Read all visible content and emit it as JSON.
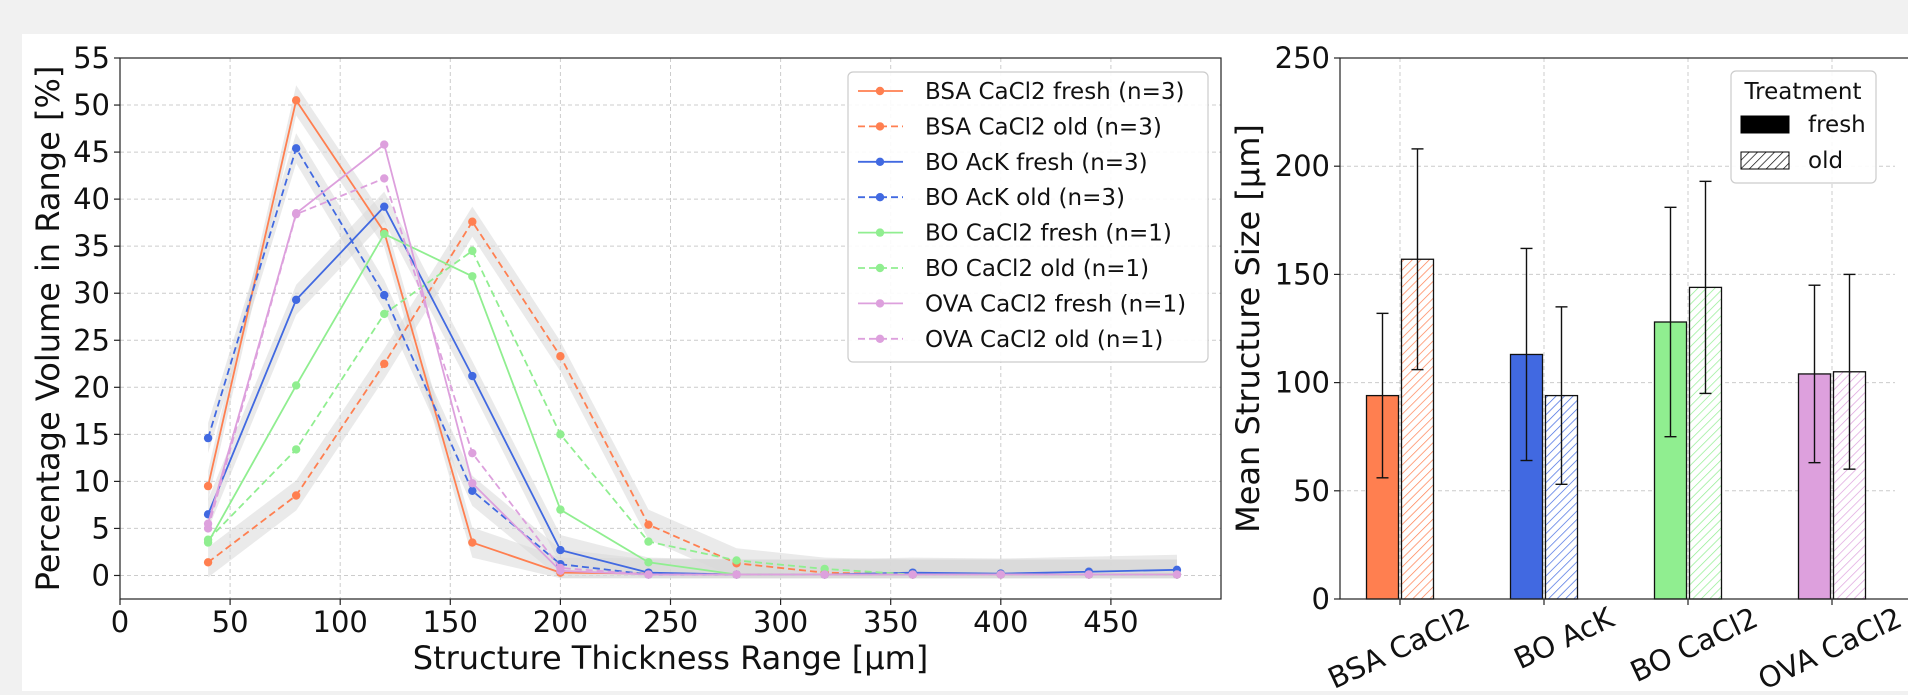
{
  "chart_data": [
    {
      "type": "line",
      "title": "",
      "xlabel": "Structure Thickness Range [µm]",
      "ylabel": "Percentage Volume in Range [%]",
      "xlim": [
        0,
        500
      ],
      "ylim": [
        -2.5,
        55
      ],
      "xticks": [
        0,
        50,
        100,
        150,
        200,
        250,
        300,
        350,
        400,
        450
      ],
      "yticks": [
        0,
        5,
        10,
        15,
        20,
        25,
        30,
        35,
        40,
        45,
        50,
        55
      ],
      "grid": true,
      "legend_position": "top-right",
      "x": [
        40,
        80,
        120,
        160,
        200,
        240,
        280,
        320,
        360,
        400,
        440,
        480
      ],
      "series": [
        {
          "name": "BSA CaCl2 fresh (n=3)",
          "color": "#ff7f50",
          "dash": false,
          "band": true,
          "values": [
            9.5,
            50.5,
            36.5,
            3.5,
            0.3,
            0.2,
            0.1,
            0.1,
            0.1,
            0.1,
            0.1,
            0.1
          ]
        },
        {
          "name": "BSA CaCl2 old (n=3)",
          "color": "#ff7f50",
          "dash": true,
          "band": true,
          "values": [
            1.4,
            8.5,
            22.5,
            37.6,
            23.3,
            5.4,
            1.3,
            0.3,
            0.1,
            0.1,
            0.1,
            0.1
          ]
        },
        {
          "name": "BO AcK fresh (n=3)",
          "color": "#4169e1",
          "dash": false,
          "band": true,
          "values": [
            6.5,
            29.3,
            39.2,
            21.2,
            2.7,
            0.3,
            0.1,
            0.1,
            0.3,
            0.2,
            0.4,
            0.6
          ]
        },
        {
          "name": "BO AcK old (n=3)",
          "color": "#4169e1",
          "dash": true,
          "band": true,
          "values": [
            14.6,
            45.4,
            29.8,
            9.0,
            1.2,
            0.1,
            0.1,
            0.1,
            0.1,
            0.1,
            0.1,
            0.1
          ]
        },
        {
          "name": "BO CaCl2 fresh (n=1)",
          "color": "#90ee90",
          "dash": false,
          "band": false,
          "values": [
            3.5,
            20.2,
            36.3,
            31.8,
            7.0,
            1.4,
            0.1,
            0.1,
            0.1,
            0.1,
            0.1,
            0.1
          ]
        },
        {
          "name": "BO CaCl2 old (n=1)",
          "color": "#90ee90",
          "dash": true,
          "band": false,
          "values": [
            3.8,
            13.4,
            27.8,
            34.5,
            15.0,
            3.6,
            1.6,
            0.7,
            0.1,
            0.1,
            0.1,
            0.1
          ]
        },
        {
          "name": "OVA CaCl2 fresh (n=1)",
          "color": "#dda0dd",
          "dash": false,
          "band": false,
          "values": [
            5.5,
            38.5,
            45.8,
            9.8,
            0.5,
            0.1,
            0.1,
            0.1,
            0.1,
            0.1,
            0.1,
            0.1
          ]
        },
        {
          "name": "OVA CaCl2 old (n=1)",
          "color": "#dda0dd",
          "dash": true,
          "band": false,
          "values": [
            5.0,
            38.4,
            42.2,
            13.0,
            0.8,
            0.1,
            0.1,
            0.1,
            0.1,
            0.1,
            0.1,
            0.1
          ]
        }
      ]
    },
    {
      "type": "bar",
      "title": "",
      "xlabel": "",
      "ylabel": "Mean Structure Size [µm]",
      "ylim": [
        0,
        250
      ],
      "yticks": [
        0,
        50,
        100,
        150,
        200,
        250
      ],
      "grid": true,
      "legend_title": "Treatment",
      "legend_position": "top-right",
      "categories": [
        "BSA CaCl2",
        "BO AcK",
        "BO CaCl2",
        "OVA CaCl2"
      ],
      "colors": [
        "#ff7f50",
        "#4169e1",
        "#90ee90",
        "#dda0dd"
      ],
      "series": [
        {
          "name": "fresh",
          "hatched": false,
          "values": [
            94,
            113,
            128,
            104
          ],
          "error": [
            38,
            49,
            53,
            41
          ]
        },
        {
          "name": "old",
          "hatched": true,
          "values": [
            157,
            94,
            144,
            105
          ],
          "error": [
            51,
            41,
            49,
            45
          ]
        }
      ]
    }
  ]
}
